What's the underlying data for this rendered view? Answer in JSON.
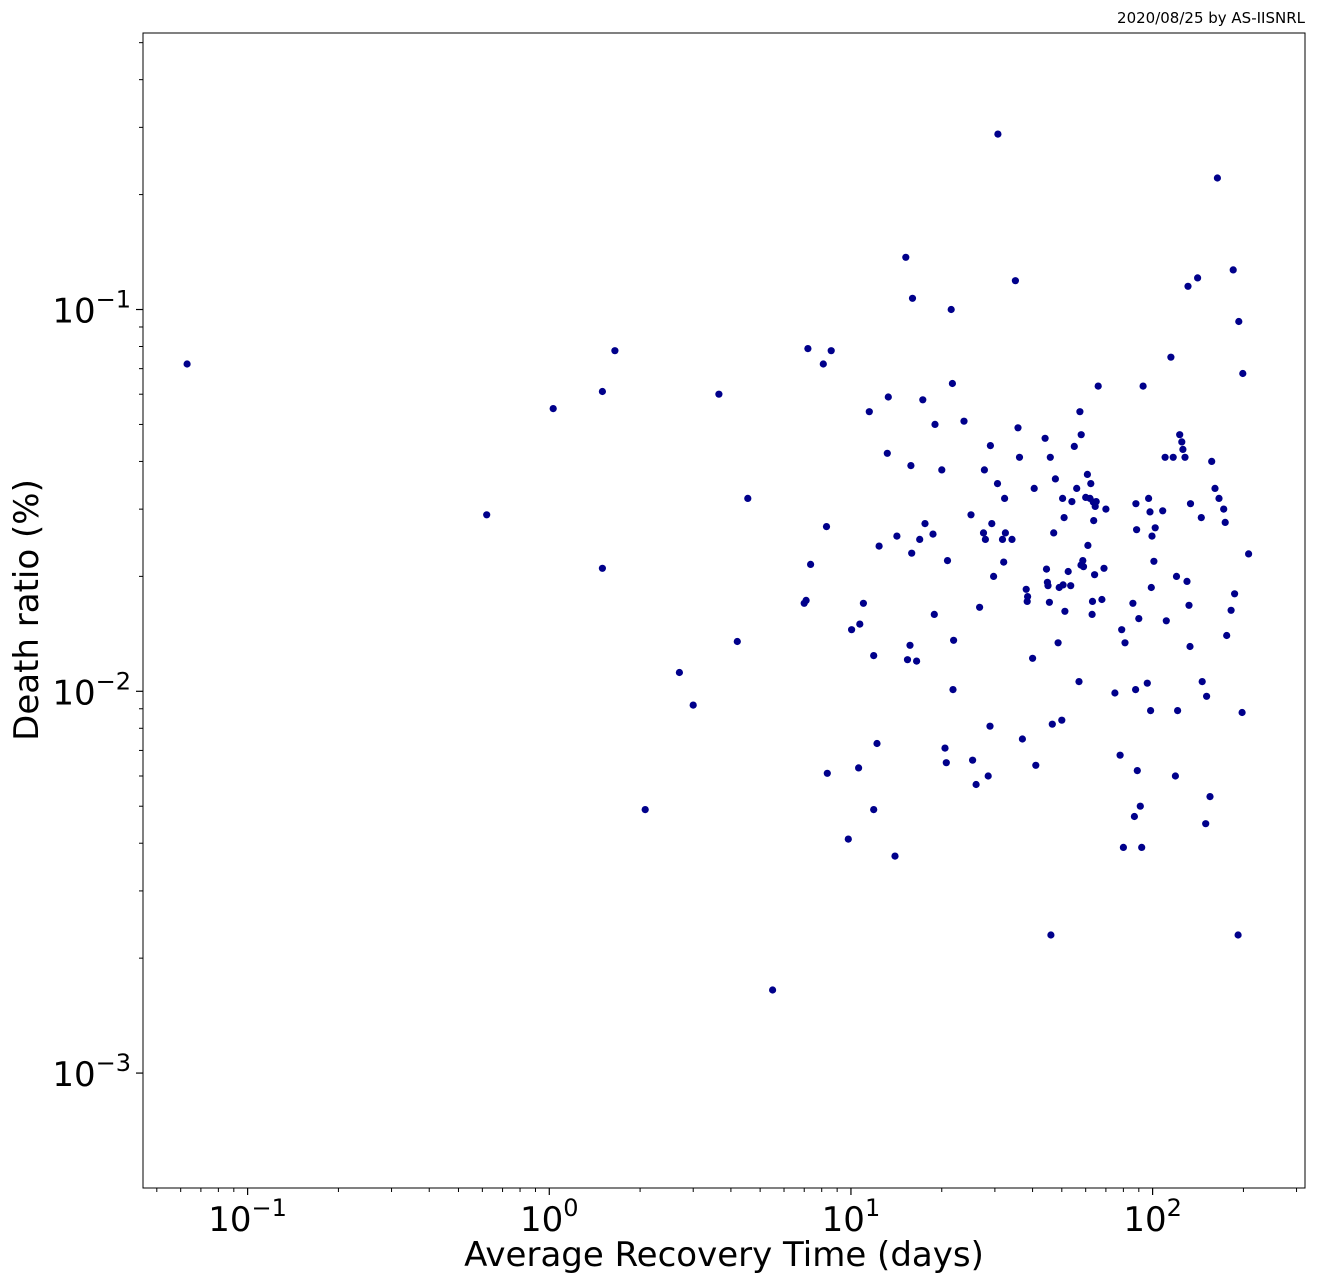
{
  "credit": "2020/08/25 by AS-IISNRL",
  "colors": {
    "marker": "#00008b",
    "axis": "#000000",
    "background": "#ffffff"
  },
  "chart_data": {
    "type": "scatter",
    "xlabel": "Average Recovery Time (days)",
    "ylabel": "Death ratio (%)",
    "xscale": "log",
    "yscale": "log",
    "xlim": [
      0.045,
      320
    ],
    "ylim": [
      0.0005,
      0.53
    ],
    "grid": false,
    "legend": "none",
    "x_ticks": [
      {
        "value": 0.1,
        "base": "10",
        "exp": "−1"
      },
      {
        "value": 1,
        "base": "10",
        "exp": "0"
      },
      {
        "value": 10,
        "base": "10",
        "exp": "1"
      },
      {
        "value": 100,
        "base": "10",
        "exp": "2"
      }
    ],
    "y_ticks": [
      {
        "value": 0.001,
        "base": "10",
        "exp": "−3"
      },
      {
        "value": 0.01,
        "base": "10",
        "exp": "−2"
      },
      {
        "value": 0.1,
        "base": "10",
        "exp": "−1"
      }
    ],
    "points": [
      [
        0.063,
        0.072
      ],
      [
        0.62,
        0.029
      ],
      [
        1.03,
        0.055
      ],
      [
        1.5,
        0.061
      ],
      [
        1.5,
        0.021
      ],
      [
        1.65,
        0.078
      ],
      [
        2.08,
        0.0049
      ],
      [
        2.7,
        0.0112
      ],
      [
        3.0,
        0.0092
      ],
      [
        3.65,
        0.06
      ],
      [
        4.2,
        0.0135
      ],
      [
        4.55,
        0.032
      ],
      [
        5.5,
        0.00165
      ],
      [
        7.0,
        0.017
      ],
      [
        7.1,
        0.0173
      ],
      [
        7.2,
        0.079
      ],
      [
        7.35,
        0.0215
      ],
      [
        8.1,
        0.072
      ],
      [
        8.3,
        0.027
      ],
      [
        8.35,
        0.0061
      ],
      [
        8.6,
        0.078
      ],
      [
        9.8,
        0.0041
      ],
      [
        10.05,
        0.0145
      ],
      [
        10.6,
        0.0063
      ],
      [
        10.7,
        0.015
      ],
      [
        11.0,
        0.017
      ],
      [
        11.5,
        0.054
      ],
      [
        11.9,
        0.0049
      ],
      [
        11.9,
        0.0124
      ],
      [
        12.2,
        0.0073
      ],
      [
        12.4,
        0.024
      ],
      [
        13.2,
        0.042
      ],
      [
        13.3,
        0.059
      ],
      [
        14.0,
        0.0037
      ],
      [
        14.2,
        0.0255
      ],
      [
        15.2,
        0.137
      ],
      [
        15.4,
        0.0121
      ],
      [
        15.7,
        0.0132
      ],
      [
        15.8,
        0.039
      ],
      [
        15.9,
        0.023
      ],
      [
        16.0,
        0.107
      ],
      [
        16.5,
        0.012
      ],
      [
        16.9,
        0.025
      ],
      [
        17.3,
        0.058
      ],
      [
        17.6,
        0.0275
      ],
      [
        18.7,
        0.0258
      ],
      [
        18.9,
        0.0159
      ],
      [
        19.0,
        0.05
      ],
      [
        20.0,
        0.038
      ],
      [
        20.5,
        0.0071
      ],
      [
        20.7,
        0.0065
      ],
      [
        20.9,
        0.022
      ],
      [
        21.5,
        0.1
      ],
      [
        21.7,
        0.064
      ],
      [
        21.8,
        0.0101
      ],
      [
        21.9,
        0.0136
      ],
      [
        23.7,
        0.051
      ],
      [
        25.0,
        0.029
      ],
      [
        25.3,
        0.0066
      ],
      [
        26.0,
        0.0057
      ],
      [
        26.7,
        0.0166
      ],
      [
        27.5,
        0.026
      ],
      [
        27.7,
        0.038
      ],
      [
        27.9,
        0.025
      ],
      [
        28.5,
        0.006
      ],
      [
        28.9,
        0.0081
      ],
      [
        29.0,
        0.044
      ],
      [
        29.3,
        0.0275
      ],
      [
        29.7,
        0.02
      ],
      [
        30.6,
        0.035
      ],
      [
        30.7,
        0.288
      ],
      [
        31.8,
        0.025
      ],
      [
        32.1,
        0.0218
      ],
      [
        32.3,
        0.032
      ],
      [
        32.5,
        0.026
      ],
      [
        34.2,
        0.025
      ],
      [
        35.1,
        0.119
      ],
      [
        35.8,
        0.049
      ],
      [
        36.2,
        0.041
      ],
      [
        37.0,
        0.0075
      ],
      [
        38.1,
        0.0185
      ],
      [
        38.4,
        0.0172
      ],
      [
        38.5,
        0.0177
      ],
      [
        40.0,
        0.0122
      ],
      [
        40.5,
        0.034
      ],
      [
        41.0,
        0.0064
      ],
      [
        44.0,
        0.046
      ],
      [
        44.5,
        0.0209
      ],
      [
        44.8,
        0.0193
      ],
      [
        45.0,
        0.0189
      ],
      [
        45.5,
        0.0171
      ],
      [
        45.8,
        0.041
      ],
      [
        46.0,
        0.0023
      ],
      [
        46.5,
        0.0082
      ],
      [
        47.0,
        0.026
      ],
      [
        47.6,
        0.036
      ],
      [
        48.6,
        0.0134
      ],
      [
        49.0,
        0.0187
      ],
      [
        50.0,
        0.0084
      ],
      [
        50.3,
        0.032
      ],
      [
        50.5,
        0.019
      ],
      [
        50.9,
        0.0285
      ],
      [
        51.2,
        0.0162
      ],
      [
        52.5,
        0.0206
      ],
      [
        53.5,
        0.0189
      ],
      [
        54.0,
        0.0314
      ],
      [
        55.0,
        0.0438
      ],
      [
        56.0,
        0.034
      ],
      [
        57.0,
        0.0106
      ],
      [
        57.4,
        0.054
      ],
      [
        57.9,
        0.0214
      ],
      [
        58.0,
        0.047
      ],
      [
        58.7,
        0.022
      ],
      [
        59.0,
        0.0212
      ],
      [
        60.0,
        0.0322
      ],
      [
        60.8,
        0.037
      ],
      [
        61.0,
        0.0241
      ],
      [
        62.0,
        0.032
      ],
      [
        62.4,
        0.035
      ],
      [
        63.0,
        0.0159
      ],
      [
        63.2,
        0.0172
      ],
      [
        63.6,
        0.0313
      ],
      [
        63.8,
        0.028
      ],
      [
        64.2,
        0.0202
      ],
      [
        64.5,
        0.0305
      ],
      [
        65.0,
        0.0314
      ],
      [
        66.0,
        0.063
      ],
      [
        67.9,
        0.0174
      ],
      [
        69.0,
        0.021
      ],
      [
        70.0,
        0.03
      ],
      [
        75.0,
        0.0099
      ],
      [
        78.0,
        0.0068
      ],
      [
        79.0,
        0.0145
      ],
      [
        80.0,
        0.0039
      ],
      [
        81.0,
        0.0134
      ],
      [
        86.0,
        0.017
      ],
      [
        87.0,
        0.0047
      ],
      [
        87.8,
        0.0101
      ],
      [
        88.0,
        0.031
      ],
      [
        88.5,
        0.0265
      ],
      [
        89.0,
        0.0062
      ],
      [
        90.0,
        0.0155
      ],
      [
        91.0,
        0.005
      ],
      [
        92.0,
        0.0039
      ],
      [
        93.0,
        0.063
      ],
      [
        96.0,
        0.0105
      ],
      [
        97.0,
        0.032
      ],
      [
        98.0,
        0.0295
      ],
      [
        98.5,
        0.0089
      ],
      [
        99.0,
        0.0187
      ],
      [
        99.5,
        0.0255
      ],
      [
        101.0,
        0.0219
      ],
      [
        102.0,
        0.0268
      ],
      [
        108.0,
        0.0297
      ],
      [
        110.0,
        0.041
      ],
      [
        111.0,
        0.0153
      ],
      [
        115.0,
        0.075
      ],
      [
        117.0,
        0.041
      ],
      [
        119.0,
        0.006
      ],
      [
        120.0,
        0.02
      ],
      [
        121.0,
        0.0089
      ],
      [
        123.0,
        0.047
      ],
      [
        125.0,
        0.045
      ],
      [
        126.0,
        0.043
      ],
      [
        128.0,
        0.041
      ],
      [
        130.0,
        0.0194
      ],
      [
        131.0,
        0.115
      ],
      [
        132.0,
        0.0168
      ],
      [
        133.0,
        0.0131
      ],
      [
        133.5,
        0.031
      ],
      [
        141.0,
        0.121
      ],
      [
        145.0,
        0.0285
      ],
      [
        146.0,
        0.0106
      ],
      [
        150.0,
        0.0045
      ],
      [
        151.0,
        0.0097
      ],
      [
        155.0,
        0.0053
      ],
      [
        157.0,
        0.04
      ],
      [
        161.0,
        0.034
      ],
      [
        164.0,
        0.221
      ],
      [
        166.0,
        0.032
      ],
      [
        172.0,
        0.03
      ],
      [
        174.0,
        0.0277
      ],
      [
        176.0,
        0.014
      ],
      [
        182.0,
        0.0163
      ],
      [
        185.0,
        0.127
      ],
      [
        187.0,
        0.018
      ],
      [
        192.0,
        0.0023
      ],
      [
        193.0,
        0.093
      ],
      [
        198.0,
        0.0088
      ],
      [
        199.0,
        0.068
      ],
      [
        208.0,
        0.0229
      ]
    ]
  }
}
